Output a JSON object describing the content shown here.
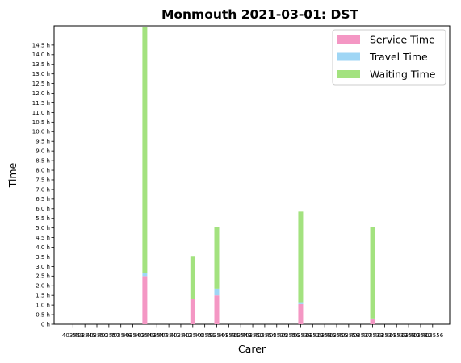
{
  "chart_data": {
    "type": "bar",
    "stacked": true,
    "title": "Monmouth 2021-03-01: DST",
    "xlabel": "Carer",
    "ylabel": "Time",
    "ylim": [
      0,
      15.5
    ],
    "yticks": [
      "0 h",
      "0.5 h",
      "1.0 h",
      "1.5 h",
      "2.0 h",
      "2.5 h",
      "3.0 h",
      "3.5 h",
      "4.0 h",
      "4.5 h",
      "5.0 h",
      "5.5 h",
      "6.0 h",
      "6.5 h",
      "7.0 h",
      "7.5 h",
      "8.0 h",
      "8.5 h",
      "9.0 h",
      "9.5 h",
      "10.0 h",
      "10.5 h",
      "11.0 h",
      "11.5 h",
      "12.0 h",
      "12.5 h",
      "13.0 h",
      "13.5 h",
      "14.0 h",
      "14.5 h"
    ],
    "yticks_values": [
      0,
      0.5,
      1,
      1.5,
      2,
      2.5,
      3,
      3.5,
      4,
      4.5,
      5,
      5.5,
      6,
      6.5,
      7,
      7.5,
      8,
      8.5,
      9,
      9.5,
      10,
      10.5,
      11,
      11.5,
      12,
      12.5,
      13,
      13.5,
      14,
      14.5
    ],
    "categories": [
      "403553",
      "403545",
      "403550",
      "403557",
      "403548",
      "403540",
      "403549",
      "403547",
      "403541",
      "403542",
      "403546",
      "403551",
      "403544",
      "403531",
      "403543",
      "403552",
      "403554",
      "403535",
      "403556",
      "403538",
      "403529",
      "403536",
      "403555",
      "403558",
      "403537",
      "403533",
      "403534",
      "403539",
      "403530",
      "403532",
      "403556"
    ],
    "series": [
      {
        "name": "Service Time",
        "color": "#f497c4",
        "values": [
          0,
          0,
          0,
          0,
          0,
          0,
          2.5,
          0,
          0,
          0,
          1.3,
          0,
          1.5,
          0,
          0,
          0,
          0,
          0,
          0,
          1.05,
          0,
          0,
          0,
          0,
          0,
          0.25,
          0,
          0,
          0,
          0,
          0
        ]
      },
      {
        "name": "Travel Time",
        "color": "#9fd6f5",
        "values": [
          0,
          0,
          0,
          0,
          0,
          0,
          0.15,
          0,
          0,
          0,
          0,
          0,
          0.35,
          0,
          0,
          0,
          0,
          0,
          0,
          0.1,
          0,
          0,
          0,
          0,
          0,
          0.05,
          0,
          0,
          0,
          0,
          0
        ]
      },
      {
        "name": "Waiting Time",
        "color": "#a3e27f",
        "values": [
          0,
          0,
          0,
          0,
          0,
          0,
          12.8,
          0,
          0,
          0,
          2.25,
          0,
          3.2,
          0,
          0,
          0,
          0,
          0,
          0,
          4.7,
          0,
          0,
          0,
          0,
          0,
          4.75,
          0,
          0,
          0,
          0,
          0
        ]
      }
    ],
    "legend_position": "top-right",
    "grid": false
  }
}
